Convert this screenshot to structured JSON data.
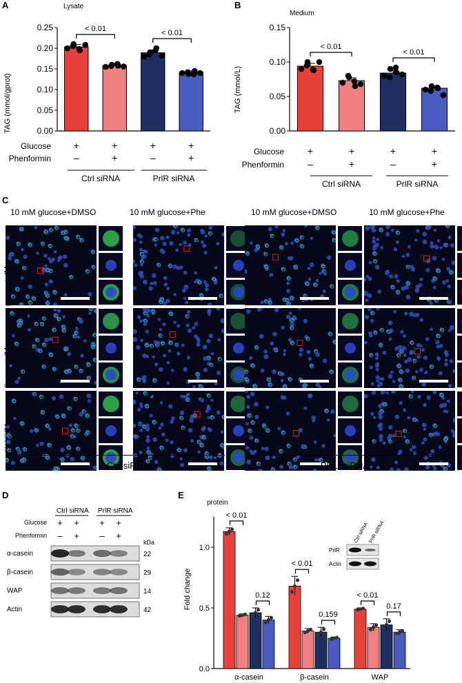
{
  "panels": {
    "A": {
      "letter": "A",
      "subtitle": "Lysate",
      "chart_data": {
        "type": "bar",
        "title": "Lysate",
        "ylabel": "TAG (mmol/gprot)",
        "ylim": [
          0,
          0.25
        ],
        "yticks": [
          "0.00",
          "0.05",
          "0.10",
          "0.15",
          "0.20",
          "0.25"
        ],
        "categories": [
          "Ctrl siRNA / -Phenformin",
          "Ctrl siRNA / +Phenformin",
          "PrlR siRNA / -Phenformin",
          "PrlR siRNA / +Phenformin"
        ],
        "values": [
          0.203,
          0.158,
          0.189,
          0.141
        ],
        "errors": [
          0.006,
          0.004,
          0.007,
          0.004
        ],
        "colors": [
          "#e8413c",
          "#f08080",
          "#1f3060",
          "#4a5cbf"
        ],
        "points": [
          [
            0.2,
            0.21,
            0.195,
            0.205,
            0.198,
            0.208
          ],
          [
            0.155,
            0.16,
            0.158,
            0.157,
            0.162,
            0.156
          ],
          [
            0.18,
            0.19,
            0.2,
            0.185,
            0.195,
            0.182
          ],
          [
            0.14,
            0.138,
            0.145,
            0.142,
            0.137,
            0.14
          ]
        ],
        "pvalues": [
          "< 0.01",
          "< 0.01"
        ]
      },
      "rows": {
        "glucose": "Glucose",
        "phenformin": "Phenformin"
      },
      "signs_glucose": [
        "+",
        "+",
        "+",
        "+"
      ],
      "signs_phenformin": [
        "–",
        "+",
        "–",
        "+"
      ],
      "groups": [
        "Ctrl siRNA",
        "PrlR siRNA"
      ]
    },
    "B": {
      "letter": "B",
      "subtitle": "Medium",
      "chart_data": {
        "type": "bar",
        "title": "Medium",
        "ylabel": "TAG (mmol/L)",
        "ylim": [
          0,
          0.15
        ],
        "yticks": [
          "0.00",
          "0.05",
          "0.10",
          "0.15"
        ],
        "categories": [
          "Ctrl siRNA / -Phenformin",
          "Ctrl siRNA / +Phenformin",
          "PrlR siRNA / -Phenformin",
          "PrlR siRNA / +Phenformin"
        ],
        "values": [
          0.094,
          0.073,
          0.084,
          0.062
        ],
        "errors": [
          0.004,
          0.004,
          0.004,
          0.003
        ],
        "colors": [
          "#e8413c",
          "#f08080",
          "#1f3060",
          "#4a5cbf"
        ],
        "points": [
          [
            0.09,
            0.1,
            0.088,
            0.095,
            0.089,
            0.1
          ],
          [
            0.07,
            0.078,
            0.065,
            0.08,
            0.072,
            0.068
          ],
          [
            0.08,
            0.09,
            0.085,
            0.078,
            0.092,
            0.082
          ],
          [
            0.06,
            0.065,
            0.062,
            0.058,
            0.063,
            0.052
          ]
        ],
        "pvalues": [
          "< 0.01",
          "< 0.01"
        ]
      },
      "rows": {
        "glucose": "Glucose",
        "phenformin": "Phenformin"
      },
      "signs_glucose": [
        "+",
        "+",
        "+",
        "+"
      ],
      "signs_phenformin": [
        "–",
        "+",
        "–",
        "+"
      ],
      "groups": [
        "Ctrl siRNA",
        "PrlR siRNA"
      ]
    },
    "C": {
      "letter": "C",
      "columns": [
        "10 mM glucose+DMSO",
        "10 mM glucose+Phe",
        "10 mM glucose+DMSO",
        "10 mM glucose+Phe"
      ],
      "rows": [
        {
          "marker": "α-casein",
          "suffix": "/Merge"
        },
        {
          "marker": "β-casein",
          "suffix": "/Merge"
        },
        {
          "marker": "WAP",
          "suffix": "/Merge"
        }
      ],
      "groups": [
        "Ctrl siRNA",
        "PRLr siRNA"
      ],
      "colors": {
        "marker": "#1fa64a",
        "background": "#07081a"
      }
    },
    "D": {
      "letter": "D",
      "groups": [
        "Ctrl siRNA",
        "PrlR siRNA"
      ],
      "rows": {
        "glucose": "Glucose",
        "phenformin": "Phenformin"
      },
      "signs_glucose": [
        "+",
        "+",
        "+",
        "+"
      ],
      "signs_phenformin": [
        "–",
        "+",
        "–",
        "+"
      ],
      "kda_label": "kDa",
      "blots": [
        {
          "name": "α-casein",
          "kda": "22"
        },
        {
          "name": "β-casein",
          "kda": "29"
        },
        {
          "name": "WAP",
          "kda": "14"
        },
        {
          "name": "Actin",
          "kda": "42"
        }
      ]
    },
    "E": {
      "letter": "E",
      "subtitle": "protein",
      "chart_data": {
        "type": "bar",
        "title": "protein",
        "ylabel": "Fold change",
        "ylim": [
          0,
          1.25
        ],
        "yticks": [
          "0.0",
          "0.5",
          "1.0"
        ],
        "categories": [
          "α-casein",
          "β-casein",
          "WAP"
        ],
        "series": [
          {
            "values": [
              1.13,
              0.68,
              0.49
            ],
            "errors": [
              0.03,
              0.08,
              0.01
            ]
          },
          {
            "values": [
              0.44,
              0.31,
              0.34
            ],
            "errors": [
              0.01,
              0.02,
              0.03
            ]
          },
          {
            "values": [
              0.46,
              0.3,
              0.36
            ],
            "errors": [
              0.04,
              0.04,
              0.05
            ]
          },
          {
            "values": [
              0.4,
              0.25,
              0.3
            ],
            "errors": [
              0.03,
              0.01,
              0.02
            ]
          }
        ],
        "colors": [
          "#e8413c",
          "#f08080",
          "#1f3060",
          "#4a5cbf"
        ],
        "pvalues": [
          [
            "< 0.01",
            "0.12"
          ],
          [
            "< 0.01",
            "0.159"
          ],
          [
            "< 0.01",
            "0.17"
          ]
        ]
      },
      "inset": {
        "cols": [
          "Ctrl siRNA",
          "PrlR siRNA"
        ],
        "rows": [
          "PrlR",
          "Actin"
        ]
      }
    }
  }
}
